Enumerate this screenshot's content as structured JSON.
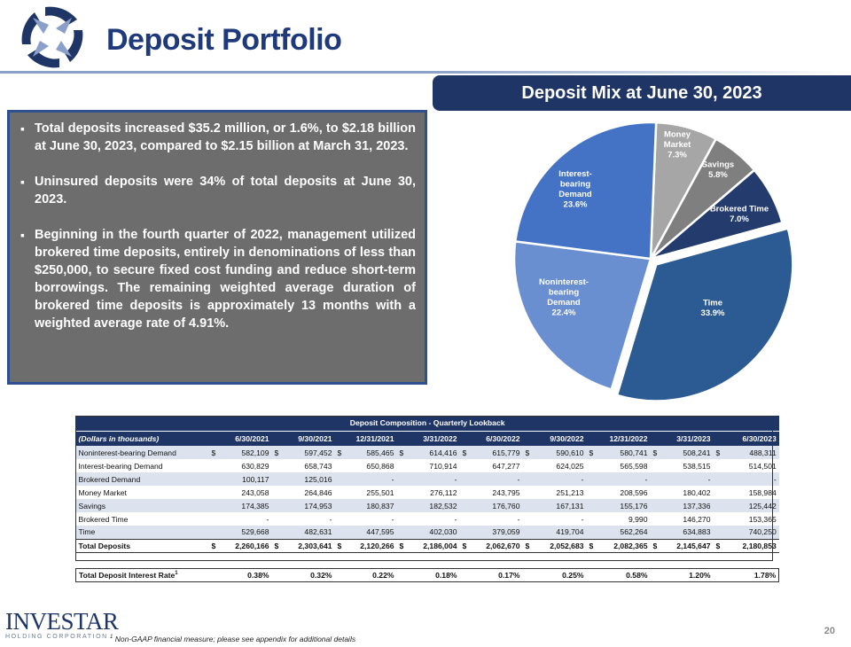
{
  "header": {
    "title": "Deposit Portfolio",
    "mix_title": "Deposit Mix at June 30, 2023"
  },
  "bullets": [
    "Total deposits increased $35.2 million, or 1.6%, to $2.18 billion at June 30, 2023, compared to $2.15 billion at March 31, 2023.",
    "Uninsured deposits were 34% of total deposits at June 30, 2023.",
    "Beginning in the fourth quarter of 2022, management utilized brokered time deposits, entirely in denominations of less than $250,000, to secure fixed cost funding and reduce short-term borrowings. The remaining weighted average duration of brokered time deposits is approximately 13 months with a weighted average rate of 4.91%."
  ],
  "pie": {
    "slices": [
      {
        "lines": [
          "Money",
          "Market",
          "7.3%"
        ],
        "value": 7.3,
        "color": "#a6a6a6"
      },
      {
        "lines": [
          "Savings",
          "5.8%"
        ],
        "value": 5.8,
        "color": "#7f7f7f"
      },
      {
        "lines": [
          "Brokered Time",
          "7.0%"
        ],
        "value": 7.0,
        "color": "#243b6e"
      },
      {
        "lines": [
          "Time",
          "33.9%"
        ],
        "value": 33.9,
        "color": "#2c5a92"
      },
      {
        "lines": [
          "Noninterest-",
          "bearing",
          "Demand",
          "22.4%"
        ],
        "value": 22.4,
        "color": "#6a8fd0"
      },
      {
        "lines": [
          "Interest-",
          "bearing",
          "Demand",
          "23.6%"
        ],
        "value": 23.6,
        "color": "#4472c4"
      }
    ]
  },
  "table": {
    "caption": "Deposit Composition - Quarterly Lookback",
    "unit_label": "(Dollars in thousands)",
    "columns": [
      "6/30/2021",
      "9/30/2021",
      "12/31/2021",
      "3/31/2022",
      "6/30/2022",
      "9/30/2022",
      "12/31/2022",
      "3/31/2023",
      "6/30/2023"
    ],
    "rows": [
      {
        "label": "Noninterest-bearing Demand",
        "dollar": true,
        "values": [
          "582,109",
          "597,452",
          "585,465",
          "614,416",
          "615,779",
          "590,610",
          "580,741",
          "508,241",
          "488,311"
        ]
      },
      {
        "label": "Interest-bearing Demand",
        "dollar": false,
        "values": [
          "630,829",
          "658,743",
          "650,868",
          "710,914",
          "647,277",
          "624,025",
          "565,598",
          "538,515",
          "514,501"
        ]
      },
      {
        "label": "Brokered Demand",
        "dollar": false,
        "values": [
          "100,117",
          "125,016",
          "-",
          "-",
          "-",
          "-",
          "-",
          "-",
          "-"
        ]
      },
      {
        "label": "Money Market",
        "dollar": false,
        "values": [
          "243,058",
          "264,846",
          "255,501",
          "276,112",
          "243,795",
          "251,213",
          "208,596",
          "180,402",
          "158,984"
        ]
      },
      {
        "label": "Savings",
        "dollar": false,
        "values": [
          "174,385",
          "174,953",
          "180,837",
          "182,532",
          "176,760",
          "167,131",
          "155,176",
          "137,336",
          "125,442"
        ]
      },
      {
        "label": "Brokered Time",
        "dollar": false,
        "values": [
          "-",
          "-",
          "-",
          "-",
          "-",
          "-",
          "9,990",
          "146,270",
          "153,365"
        ]
      },
      {
        "label": "Time",
        "dollar": false,
        "values": [
          "529,668",
          "482,631",
          "447,595",
          "402,030",
          "379,059",
          "419,704",
          "562,264",
          "634,883",
          "740,250"
        ]
      }
    ],
    "total": {
      "label": "Total Deposits",
      "values": [
        "2,260,166",
        "2,303,641",
        "2,120,266",
        "2,186,004",
        "2,062,670",
        "2,052,683",
        "2,082,365",
        "2,145,647",
        "2,180,853"
      ]
    },
    "rate": {
      "label": "Total Deposit Interest Rate",
      "sup": "1",
      "values": [
        "0.38%",
        "0.32%",
        "0.22%",
        "0.18%",
        "0.17%",
        "0.25%",
        "0.58%",
        "1.20%",
        "1.78%"
      ]
    },
    "currency_symbol": "$"
  },
  "footer": {
    "brand_name": "INVESTAR",
    "brand_sub": "HOLDING CORPORATION",
    "footnote_sup": "1",
    "footnote": " Non-GAAP financial measure; please see appendix for additional details",
    "page_number": "20"
  }
}
